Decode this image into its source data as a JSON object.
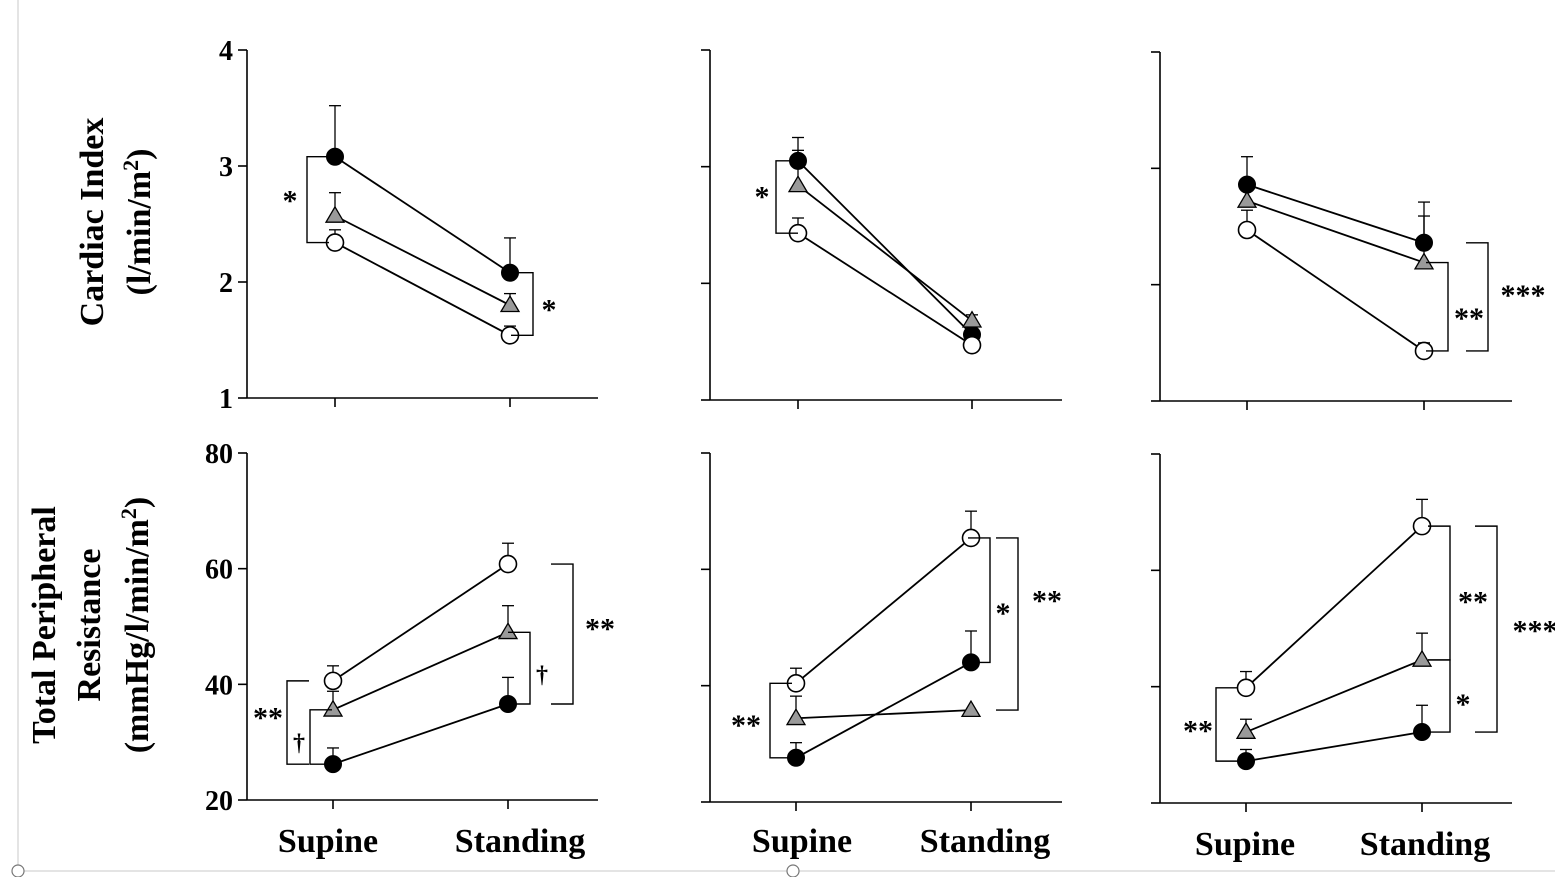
{
  "figure": {
    "row_labels": {
      "top_line1": "Cardiac Index",
      "top_line2_prefix": "(l/min/m",
      "top_line2_sup": "2",
      "top_line2_suffix": ")",
      "bottom_line1": "Total Peripheral",
      "bottom_line2": "Resistance",
      "bottom_line3_prefix": "(mmHg/l/min/m",
      "bottom_line3_sup": "2",
      "bottom_line3_suffix": ")"
    },
    "categories": [
      "Supine",
      "Standing"
    ]
  },
  "chart_data": [
    {
      "type": "line",
      "panel": "top-left",
      "categories": [
        "Supine",
        "Standing"
      ],
      "ylim": [
        1,
        4
      ],
      "yticks": [
        "1",
        "2",
        "3",
        "4"
      ],
      "series": [
        {
          "marker": "filled-circle",
          "values": [
            3.08,
            2.08
          ],
          "error": [
            0.44,
            0.3
          ]
        },
        {
          "marker": "gray-triangle",
          "values": [
            2.57,
            1.8
          ],
          "error": [
            0.2,
            0.1
          ]
        },
        {
          "marker": "open-circle",
          "values": [
            2.34,
            1.54
          ],
          "error": [
            0.11,
            0.08
          ]
        }
      ],
      "annotations": [
        {
          "text": "*",
          "at": "Supine"
        },
        {
          "text": "*",
          "at": "Standing"
        }
      ]
    },
    {
      "type": "line",
      "panel": "top-middle",
      "categories": [
        "Supine",
        "Standing"
      ],
      "ylim": [
        1,
        4
      ],
      "yticks": [],
      "series": [
        {
          "marker": "filled-circle",
          "values": [
            3.05,
            1.56
          ],
          "error": [
            0.2,
            0.08
          ]
        },
        {
          "marker": "gray-triangle",
          "values": [
            2.84,
            1.68
          ],
          "error": [
            0.3,
            0.05
          ]
        },
        {
          "marker": "open-circle",
          "values": [
            2.43,
            1.47
          ],
          "error": [
            0.13,
            0.08
          ]
        }
      ],
      "annotations": [
        {
          "text": "*",
          "at": "Supine"
        }
      ]
    },
    {
      "type": "line",
      "panel": "top-right",
      "categories": [
        "Supine",
        "Standing"
      ],
      "ylim": [
        1,
        4
      ],
      "yticks": [],
      "series": [
        {
          "marker": "filled-circle",
          "values": [
            2.86,
            2.36
          ],
          "error": [
            0.24,
            0.35
          ]
        },
        {
          "marker": "gray-triangle",
          "values": [
            2.72,
            2.19
          ],
          "error": [
            0.1,
            0.4
          ]
        },
        {
          "marker": "open-circle",
          "values": [
            2.47,
            1.43
          ],
          "error": [
            0.17,
            0.07
          ]
        }
      ],
      "annotations": [
        {
          "text": "**",
          "at": "Standing"
        },
        {
          "text": "***",
          "at": "Standing"
        }
      ]
    },
    {
      "type": "line",
      "panel": "bottom-left",
      "categories": [
        "Supine",
        "Standing"
      ],
      "ylim": [
        20,
        80
      ],
      "yticks": [
        "20",
        "40",
        "60",
        "80"
      ],
      "series": [
        {
          "marker": "open-circle",
          "values": [
            40.6,
            60.8
          ],
          "error": [
            2.6,
            3.6
          ]
        },
        {
          "marker": "gray-triangle",
          "values": [
            35.6,
            49.0
          ],
          "error": [
            3.2,
            4.6
          ]
        },
        {
          "marker": "filled-circle",
          "values": [
            26.2,
            36.6
          ],
          "error": [
            2.8,
            4.6
          ]
        }
      ],
      "annotations": [
        {
          "text": "**",
          "at": "Supine"
        },
        {
          "text": "†",
          "at": "Supine"
        },
        {
          "text": "†",
          "at": "Standing"
        },
        {
          "text": "**",
          "at": "Standing"
        }
      ]
    },
    {
      "type": "line",
      "panel": "bottom-middle",
      "categories": [
        "Supine",
        "Standing"
      ],
      "ylim": [
        20,
        80
      ],
      "yticks": [],
      "series": [
        {
          "marker": "open-circle",
          "values": [
            40.4,
            65.4
          ],
          "error": [
            2.6,
            4.6
          ]
        },
        {
          "marker": "gray-triangle",
          "values": [
            34.4,
            35.8
          ],
          "error": [
            3.8,
            0.0
          ]
        },
        {
          "marker": "filled-circle",
          "values": [
            27.6,
            44.0
          ],
          "error": [
            2.6,
            5.4
          ]
        }
      ],
      "annotations": [
        {
          "text": "**",
          "at": "Supine"
        },
        {
          "text": "*",
          "at": "Standing"
        },
        {
          "text": "**",
          "at": "Standing"
        }
      ]
    },
    {
      "type": "line",
      "panel": "bottom-right",
      "categories": [
        "Supine",
        "Standing"
      ],
      "ylim": [
        20,
        80
      ],
      "yticks": [],
      "series": [
        {
          "marker": "open-circle",
          "values": [
            39.8,
            67.6
          ],
          "error": [
            2.8,
            4.6
          ]
        },
        {
          "marker": "gray-triangle",
          "values": [
            32.2,
            44.6
          ],
          "error": [
            2.2,
            4.6
          ]
        },
        {
          "marker": "filled-circle",
          "values": [
            27.2,
            32.2
          ],
          "error": [
            2.0,
            4.6
          ]
        }
      ],
      "annotations": [
        {
          "text": "**",
          "at": "Supine"
        },
        {
          "text": "**",
          "at": "Standing"
        },
        {
          "text": "*",
          "at": "Standing"
        },
        {
          "text": "***",
          "at": "Standing"
        }
      ]
    }
  ]
}
